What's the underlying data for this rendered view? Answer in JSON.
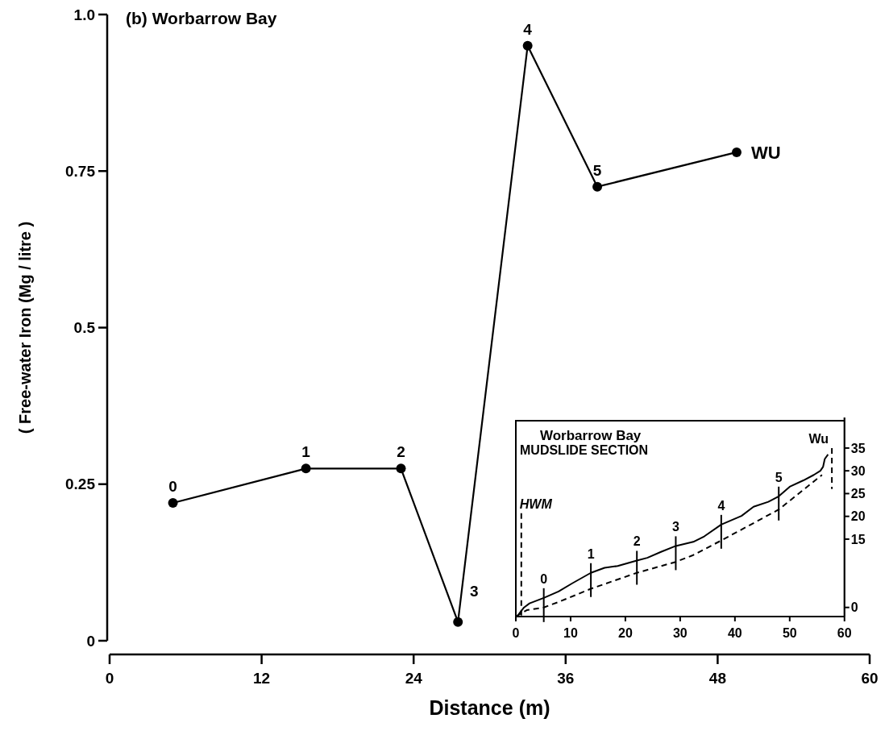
{
  "chart_data": [
    {
      "type": "line",
      "title": "(b) Worbarrow Bay",
      "xlabel": "Distance (m)",
      "ylabel": "( Free-water Iron (Mg / litre )",
      "xlim": [
        0,
        60
      ],
      "xticks": [
        0,
        12,
        24,
        36,
        48,
        60
      ],
      "ylim": [
        0,
        1
      ],
      "yticks": [
        0,
        0.25,
        0.5,
        0.75,
        {
          "value": 1,
          "label": "1.0"
        }
      ],
      "marker": "circle",
      "series": [
        {
          "color": "#000000",
          "x": [
            5,
            15.5,
            23,
            27.5,
            33,
            38.5,
            49.5
          ],
          "values": [
            0.22,
            0.275,
            0.275,
            0.03,
            0.95,
            0.725,
            0.78
          ]
        }
      ],
      "annotations": [
        {
          "text": "0",
          "x": 5,
          "y": 0.22
        },
        {
          "text": "1",
          "x": 15.5,
          "y": 0.275
        },
        {
          "text": "2",
          "x": 23,
          "y": 0.275
        },
        {
          "text": "3",
          "x": 27.5,
          "y": 0.03
        },
        {
          "text": "4",
          "x": 33,
          "y": 0.95
        },
        {
          "text": "5",
          "x": 38.5,
          "y": 0.725
        },
        {
          "text": "WU",
          "x": 49.5,
          "y": 0.78
        }
      ]
    },
    {
      "type": "line",
      "title": "Worbarrow Bay",
      "subtitle": "MUDSLIDE SECTION",
      "xlim": [
        0,
        60
      ],
      "xticks": [
        0,
        10,
        20,
        30,
        40,
        50,
        60
      ],
      "ylim": [
        -2,
        41
      ],
      "yticks": [
        0,
        15,
        20,
        25,
        30,
        35
      ],
      "marker": "none",
      "series": [
        {
          "color": "#000000",
          "line_style": "solid",
          "x": [
            0.2,
            1.5,
            2.5,
            5.1,
            7.8,
            10.3,
            13.7,
            16.2,
            18.6,
            22.1,
            24,
            26.5,
            29.2,
            32.4,
            34.4,
            37.5,
            41.2,
            43.4,
            46.1,
            48,
            50,
            52.5,
            54.4,
            55.6,
            56.1,
            56.4,
            57
          ],
          "values": [
            -2,
            0,
            0.9,
            2.1,
            3.5,
            5.3,
            7.6,
            8.7,
            9.1,
            10.3,
            10.9,
            12.2,
            13.5,
            14.4,
            15.6,
            18.2,
            20.1,
            22.1,
            23.2,
            24.4,
            26.5,
            27.9,
            29.1,
            30,
            30.9,
            32.6,
            33.6
          ]
        },
        {
          "color": "#000000",
          "line_style": "dashed",
          "x": [
            0,
            2,
            5.1,
            7.8,
            13.7,
            22.1,
            29.2,
            32.4,
            37.5,
            48,
            55.9
          ],
          "values": [
            -2,
            -0.6,
            0,
            1.2,
            4.1,
            7.6,
            10,
            11.5,
            14.7,
            21.5,
            29.1
          ]
        }
      ],
      "ref_lines": [
        {
          "axis": "x",
          "value": 1,
          "label": "HWM",
          "line_style": "dashed"
        },
        {
          "axis": "x",
          "value": 57.7,
          "label": "Wu",
          "line_style": "dashed"
        }
      ],
      "annotations": [
        {
          "text": "0",
          "x": 5.1,
          "y": 2.1
        },
        {
          "text": "1",
          "x": 13.7,
          "y": 7.6
        },
        {
          "text": "2",
          "x": 22.1,
          "y": 10.3
        },
        {
          "text": "3",
          "x": 29.2,
          "y": 13.5
        },
        {
          "text": "4",
          "x": 37.5,
          "y": 18.2
        },
        {
          "text": "5",
          "x": 48,
          "y": 24.4
        }
      ]
    }
  ]
}
